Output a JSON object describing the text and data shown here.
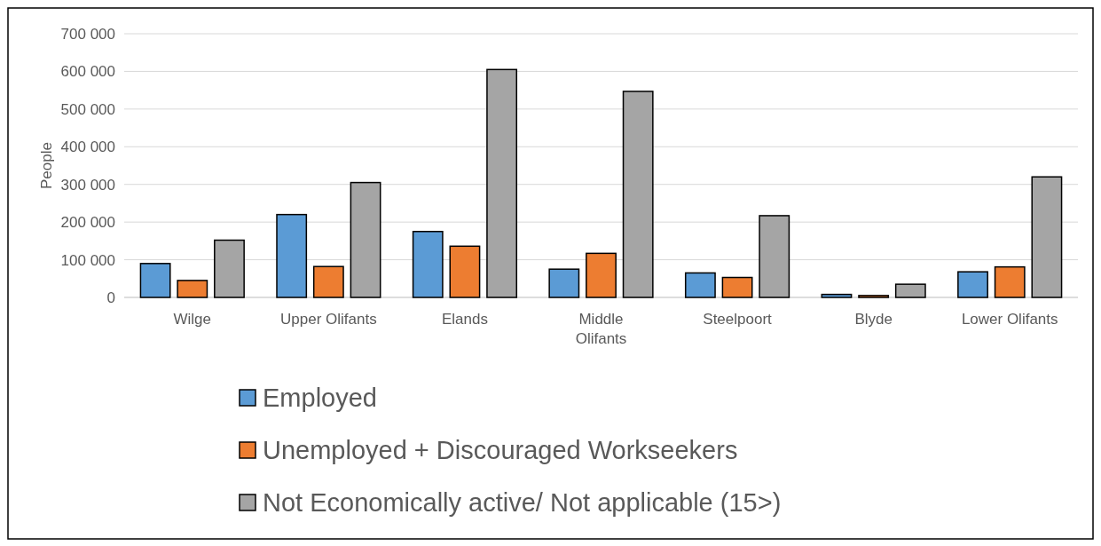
{
  "chart_data": {
    "type": "bar",
    "ylabel": "People",
    "categories": [
      "Wilge",
      "Upper Olifants",
      "Elands",
      "Middle Olifants",
      "Steelpoort",
      "Blyde",
      "Lower Olifants"
    ],
    "series": [
      {
        "name": "Employed",
        "color": "#5b9bd5",
        "values": [
          90000,
          220000,
          175000,
          75000,
          65000,
          8000,
          68000
        ]
      },
      {
        "name": "Unemployed + Discouraged Workseekers",
        "color": "#ed7d31",
        "values": [
          45000,
          82000,
          136000,
          117000,
          53000,
          5000,
          81000
        ]
      },
      {
        "name": "Not Economically active/ Not applicable (15>)",
        "color": "#a5a5a5",
        "values": [
          152000,
          305000,
          605000,
          547000,
          217000,
          35000,
          320000
        ]
      }
    ],
    "ylim": [
      0,
      700000
    ],
    "yticks": [
      {
        "value": 0,
        "label": "0"
      },
      {
        "value": 100000,
        "label": "100 000"
      },
      {
        "value": 200000,
        "label": "200 000"
      },
      {
        "value": 300000,
        "label": "300 000"
      },
      {
        "value": 400000,
        "label": "400 000"
      },
      {
        "value": 500000,
        "label": "500 000"
      },
      {
        "value": 600000,
        "label": "600 000"
      },
      {
        "value": 700000,
        "label": "700 000"
      }
    ],
    "grid": "y",
    "legend": "bottom"
  }
}
